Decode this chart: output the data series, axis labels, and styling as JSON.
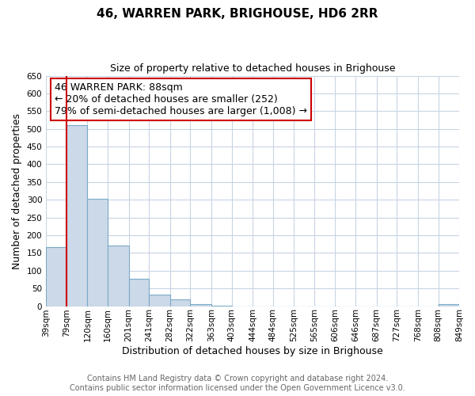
{
  "title": "46, WARREN PARK, BRIGHOUSE, HD6 2RR",
  "subtitle": "Size of property relative to detached houses in Brighouse",
  "bar_edges": [
    39,
    79,
    120,
    160,
    201,
    241,
    282,
    322,
    363,
    403,
    444,
    484,
    525,
    565,
    606,
    646,
    687,
    727,
    768,
    808,
    849
  ],
  "bar_heights": [
    167,
    510,
    302,
    170,
    78,
    33,
    20,
    5,
    1,
    0,
    0,
    0,
    0,
    0,
    0,
    0,
    0,
    0,
    0,
    5
  ],
  "property_line_x": 79,
  "bar_color": "#ccd9e8",
  "bar_edge_color": "#7aaac8",
  "annotation_box_text": "46 WARREN PARK: 88sqm\n← 20% of detached houses are smaller (252)\n79% of semi-detached houses are larger (1,008) →",
  "ylabel": "Number of detached properties",
  "xlabel": "Distribution of detached houses by size in Brighouse",
  "ylim": [
    0,
    650
  ],
  "yticks": [
    0,
    50,
    100,
    150,
    200,
    250,
    300,
    350,
    400,
    450,
    500,
    550,
    600,
    650
  ],
  "tick_labels": [
    "39sqm",
    "79sqm",
    "120sqm",
    "160sqm",
    "201sqm",
    "241sqm",
    "282sqm",
    "322sqm",
    "363sqm",
    "403sqm",
    "444sqm",
    "484sqm",
    "525sqm",
    "565sqm",
    "606sqm",
    "646sqm",
    "687sqm",
    "727sqm",
    "768sqm",
    "808sqm",
    "849sqm"
  ],
  "footer_line1": "Contains HM Land Registry data © Crown copyright and database right 2024.",
  "footer_line2": "Contains public sector information licensed under the Open Government Licence v3.0.",
  "background_color": "#ffffff",
  "grid_color": "#c8d4e4",
  "red_color": "#cc0000",
  "title_fontsize": 11,
  "subtitle_fontsize": 9,
  "ylabel_fontsize": 9,
  "xlabel_fontsize": 9,
  "tick_fontsize": 7.5,
  "annot_fontsize": 9,
  "footer_fontsize": 7,
  "footer_color": "#666666"
}
